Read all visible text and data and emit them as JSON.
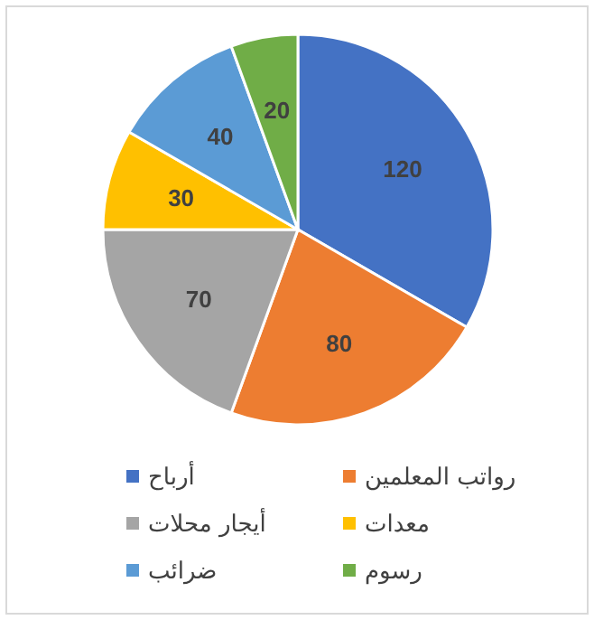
{
  "chart_data": {
    "type": "pie",
    "categories": [
      "أرباح",
      "رواتب المعلمين",
      "أيجار محلات",
      "معدات",
      "ضرائب",
      "رسوم"
    ],
    "values": [
      120,
      80,
      70,
      30,
      40,
      20
    ],
    "colors": [
      "#4472c4",
      "#ed7d31",
      "#a5a5a5",
      "#ffc000",
      "#5b9bd5",
      "#70ad47"
    ],
    "data_labels": true,
    "legend": "bottom"
  }
}
